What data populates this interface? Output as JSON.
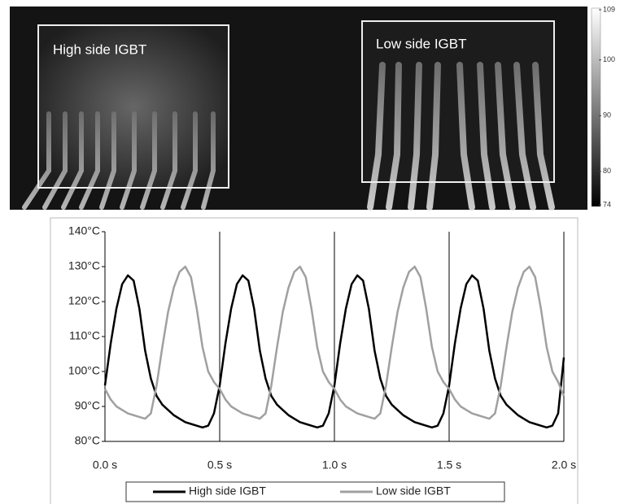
{
  "thermal_image": {
    "labels": [
      "High side IGBT",
      "Low side IGBT"
    ],
    "colorbar_ticks": [
      109,
      100,
      90,
      80,
      74
    ],
    "colorbar_lim": [
      74,
      109
    ]
  },
  "chart_data": {
    "type": "line",
    "x": [
      0,
      0.025,
      0.05,
      0.075,
      0.1,
      0.125,
      0.15,
      0.175,
      0.2,
      0.225,
      0.25,
      0.275,
      0.3,
      0.325,
      0.35,
      0.375,
      0.4,
      0.425,
      0.45,
      0.475,
      0.5,
      0.525,
      0.55,
      0.575,
      0.6,
      0.625,
      0.65,
      0.675,
      0.7,
      0.725,
      0.75,
      0.775,
      0.8,
      0.825,
      0.85,
      0.875,
      0.9,
      0.925,
      0.95,
      0.975,
      1,
      1.025,
      1.05,
      1.075,
      1.1,
      1.125,
      1.15,
      1.175,
      1.2,
      1.225,
      1.25,
      1.275,
      1.3,
      1.325,
      1.35,
      1.375,
      1.4,
      1.425,
      1.45,
      1.475,
      1.5,
      1.525,
      1.55,
      1.575,
      1.6,
      1.625,
      1.65,
      1.675,
      1.7,
      1.725,
      1.75,
      1.775,
      1.8,
      1.825,
      1.85,
      1.875,
      1.9,
      1.925,
      1.95,
      1.975,
      2
    ],
    "series": [
      {
        "name": "High side IGBT",
        "color": "#000000",
        "values": [
          96,
          108,
          118,
          125,
          127.5,
          126,
          118,
          106,
          98,
          93,
          90.5,
          89,
          87.5,
          86.5,
          85.5,
          85,
          84.5,
          84,
          84.5,
          88,
          96,
          108,
          118,
          125,
          127.5,
          126,
          118,
          106,
          98,
          93,
          90.5,
          89,
          87.5,
          86.5,
          85.5,
          85,
          84.5,
          84,
          84.5,
          88,
          96,
          108,
          118,
          125,
          127.5,
          126,
          118,
          106,
          98,
          93,
          90.5,
          89,
          87.5,
          86.5,
          85.5,
          85,
          84.5,
          84,
          84.5,
          88,
          96,
          108,
          118,
          125,
          127.5,
          126,
          118,
          106,
          98,
          93,
          90.5,
          89,
          87.5,
          86.5,
          85.5,
          85,
          84.5,
          84,
          84.5,
          88,
          104
        ]
      },
      {
        "name": "Low side IGBT",
        "color": "#a0a0a0",
        "values": [
          95,
          92,
          90,
          89,
          88,
          87.5,
          87,
          86.5,
          88,
          96,
          107,
          117,
          124,
          128.5,
          130,
          127,
          118,
          107,
          100,
          97,
          95,
          92,
          90,
          89,
          88,
          87.5,
          87,
          86.5,
          88,
          96,
          107,
          117,
          124,
          128.5,
          130,
          127,
          118,
          107,
          100,
          97,
          95,
          92,
          90,
          89,
          88,
          87.5,
          87,
          86.5,
          88,
          96,
          107,
          117,
          124,
          128.5,
          130,
          127,
          118,
          107,
          100,
          97,
          95,
          92,
          90,
          89,
          88,
          87.5,
          87,
          86.5,
          88,
          96,
          107,
          117,
          124,
          128.5,
          130,
          127,
          118,
          107,
          100,
          97,
          93
        ]
      }
    ],
    "xlim": [
      0,
      2
    ],
    "xticks": [
      {
        "value": 0,
        "label": "0.0 s"
      },
      {
        "value": 0.5,
        "label": "0.5 s"
      },
      {
        "value": 1,
        "label": "1.0 s"
      },
      {
        "value": 1.5,
        "label": "1.5 s"
      },
      {
        "value": 2,
        "label": "2.0 s"
      }
    ],
    "ylim": [
      80,
      140
    ],
    "yticks": [
      {
        "value": 80,
        "label": "80°C"
      },
      {
        "value": 90,
        "label": "90°C"
      },
      {
        "value": 100,
        "label": "100°C"
      },
      {
        "value": 110,
        "label": "110°C"
      },
      {
        "value": 120,
        "label": "120°C"
      },
      {
        "value": 130,
        "label": "130°C"
      },
      {
        "value": 140,
        "label": "140°C"
      }
    ],
    "grid": "x",
    "legend": "bottom"
  }
}
